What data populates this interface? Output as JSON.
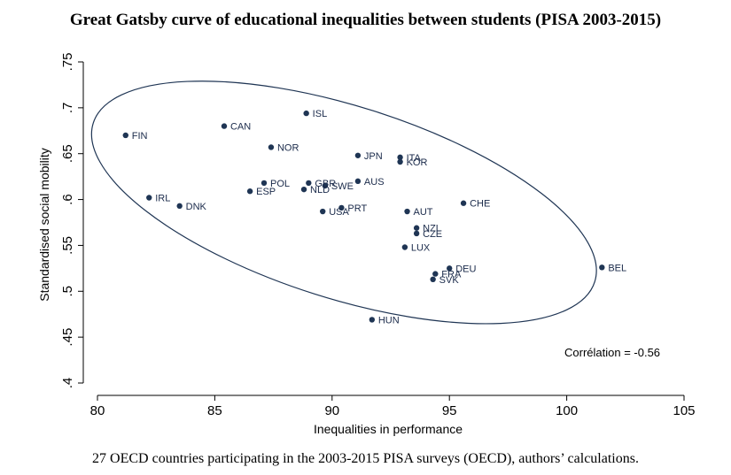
{
  "chart_data": {
    "type": "scatter",
    "title": "Great Gatsby curve of educational inequalities between students (PISA 2003-2015)",
    "xlabel": "Inequalities in performance",
    "ylabel": "Standardised social mobility",
    "xlim": [
      80,
      105
    ],
    "ylim": [
      0.4,
      0.75
    ],
    "xticks": [
      80,
      85,
      90,
      95,
      100,
      105
    ],
    "yticks": [
      0.4,
      0.45,
      0.5,
      0.55,
      0.6,
      0.65,
      0.7,
      0.75
    ],
    "ytick_labels": [
      ".4",
      ".45",
      ".5",
      ".55",
      ".6",
      ".65",
      ".7",
      ".75"
    ],
    "grid": false,
    "point_color": "#1f3554",
    "ellipse_color": "#1f3554",
    "annotation": "Corrélation = -0.56",
    "caption": "27 OECD countries participating in the 2003-2015 PISA surveys (OECD), authors’ calculations.",
    "points": [
      {
        "label": "FIN",
        "x": 81.2,
        "y": 0.67
      },
      {
        "label": "CAN",
        "x": 85.4,
        "y": 0.68
      },
      {
        "label": "ISL",
        "x": 88.9,
        "y": 0.694
      },
      {
        "label": "NOR",
        "x": 87.4,
        "y": 0.657
      },
      {
        "label": "JPN",
        "x": 91.1,
        "y": 0.648
      },
      {
        "label": "ITA",
        "x": 92.9,
        "y": 0.646
      },
      {
        "label": "KOR",
        "x": 92.9,
        "y": 0.641
      },
      {
        "label": "POL",
        "x": 87.1,
        "y": 0.618
      },
      {
        "label": "ESP",
        "x": 86.5,
        "y": 0.609
      },
      {
        "label": "GBR",
        "x": 89.0,
        "y": 0.618
      },
      {
        "label": "SWE",
        "x": 89.7,
        "y": 0.615
      },
      {
        "label": "NLD",
        "x": 88.8,
        "y": 0.611
      },
      {
        "label": "AUS",
        "x": 91.1,
        "y": 0.62
      },
      {
        "label": "IRL",
        "x": 82.2,
        "y": 0.602
      },
      {
        "label": "DNK",
        "x": 83.5,
        "y": 0.593
      },
      {
        "label": "USA",
        "x": 89.6,
        "y": 0.587
      },
      {
        "label": "PRT",
        "x": 90.4,
        "y": 0.591
      },
      {
        "label": "AUT",
        "x": 93.2,
        "y": 0.587
      },
      {
        "label": "CHE",
        "x": 95.6,
        "y": 0.596
      },
      {
        "label": "NZL",
        "x": 93.6,
        "y": 0.569
      },
      {
        "label": "CZE",
        "x": 93.6,
        "y": 0.563
      },
      {
        "label": "LUX",
        "x": 93.1,
        "y": 0.548
      },
      {
        "label": "DEU",
        "x": 95.0,
        "y": 0.525
      },
      {
        "label": "FRA",
        "x": 94.4,
        "y": 0.519
      },
      {
        "label": "SVK",
        "x": 94.3,
        "y": 0.513
      },
      {
        "label": "BEL",
        "x": 101.5,
        "y": 0.526
      },
      {
        "label": "HUN",
        "x": 91.7,
        "y": 0.469
      }
    ]
  }
}
